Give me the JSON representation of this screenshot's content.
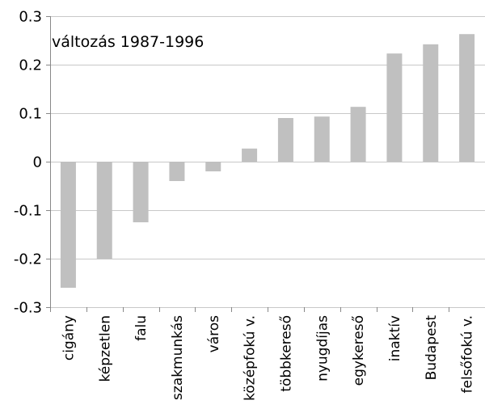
{
  "chart_data": {
    "type": "bar",
    "annotation": "változás 1987-1996",
    "categories": [
      "cigány",
      "képzetlen",
      "falu",
      "szakmunkás",
      "város",
      "középfokú v.",
      "többkereső",
      "nyugdíjas",
      "egykereső",
      "inaktív",
      "Budapest",
      "felsőfokú v."
    ],
    "values": [
      -0.26,
      -0.2,
      -0.125,
      -0.04,
      -0.02,
      0.027,
      0.09,
      0.093,
      0.113,
      0.223,
      0.242,
      0.263
    ],
    "ylim": [
      -0.3,
      0.3
    ],
    "yticks": [
      "0.3",
      "0.2",
      "0.1",
      "0",
      "-0.1",
      "-0.2",
      "-0.3"
    ],
    "ytick_values": [
      0.3,
      0.2,
      0.1,
      0,
      -0.1,
      -0.2,
      -0.3
    ],
    "bar_color": "#c0c0c0",
    "grid_color": "#c8c8c8",
    "grid": true,
    "legend": false
  }
}
